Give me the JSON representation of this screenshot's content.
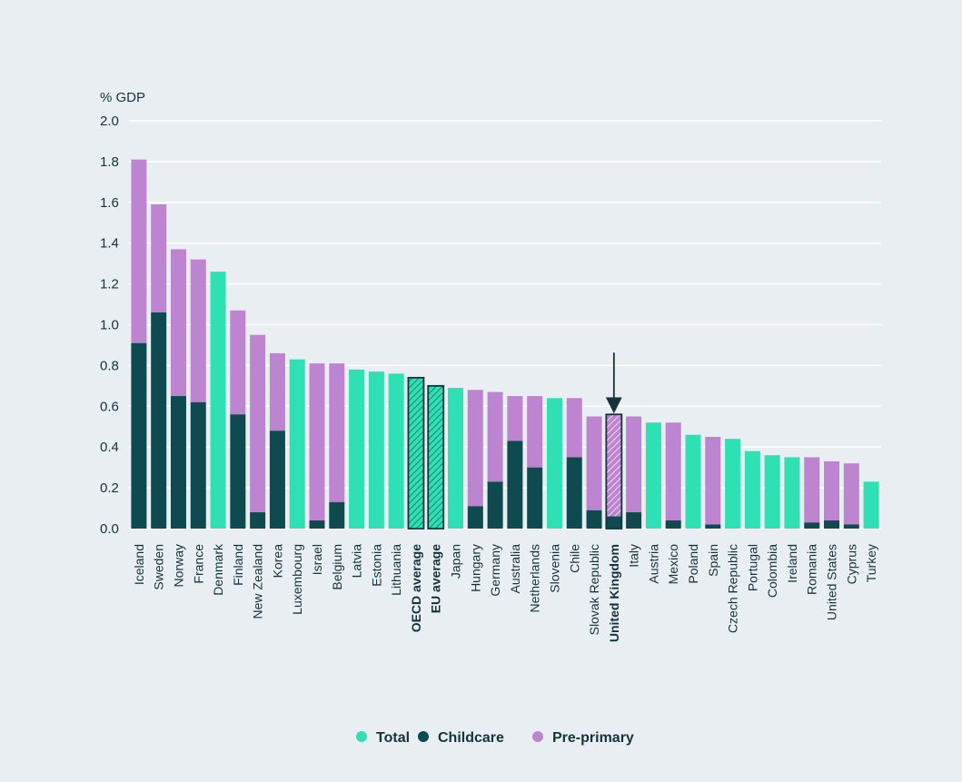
{
  "chart_data": {
    "type": "bar",
    "stacked": true,
    "unit_label": "% GDP",
    "ylim": [
      0,
      2.0
    ],
    "y_ticks": [
      "0.0",
      "0.2",
      "0.4",
      "0.6",
      "0.8",
      "1.0",
      "1.2",
      "1.4",
      "1.6",
      "1.8",
      "2.0"
    ],
    "grid": true,
    "legend_position": "bottom-center",
    "legend": [
      {
        "key": "total",
        "label": "Total",
        "color": "#2ee0b4"
      },
      {
        "key": "childcare",
        "label": "Childcare",
        "color": "#0e4a4f"
      },
      {
        "key": "preprimary",
        "label": "Pre-primary",
        "color": "#bd84cf"
      }
    ],
    "bars": [
      {
        "label": "Iceland",
        "childcare": 0.91,
        "total": 1.81
      },
      {
        "label": "Sweden",
        "childcare": 1.06,
        "total": 1.59
      },
      {
        "label": "Norway",
        "childcare": 0.65,
        "total": 1.37
      },
      {
        "label": "France",
        "childcare": 0.62,
        "total": 1.32
      },
      {
        "label": "Denmark",
        "total_only": true,
        "total": 1.26
      },
      {
        "label": "Finland",
        "childcare": 0.56,
        "total": 1.07
      },
      {
        "label": "New Zealand",
        "childcare": 0.08,
        "total": 0.95
      },
      {
        "label": "Korea",
        "childcare": 0.48,
        "total": 0.86
      },
      {
        "label": "Luxembourg",
        "total_only": true,
        "total": 0.83
      },
      {
        "label": "Israel",
        "childcare": 0.04,
        "total": 0.81
      },
      {
        "label": "Belgium",
        "childcare": 0.13,
        "total": 0.81
      },
      {
        "label": "Latvia",
        "total_only": true,
        "total": 0.78
      },
      {
        "label": "Estonia",
        "total_only": true,
        "total": 0.77
      },
      {
        "label": "Lithuania",
        "total_only": true,
        "total": 0.76
      },
      {
        "label": "OECD average",
        "total_only": true,
        "highlight": true,
        "total": 0.74
      },
      {
        "label": "EU average",
        "total_only": true,
        "highlight": true,
        "total": 0.7
      },
      {
        "label": "Japan",
        "total_only": true,
        "total": 0.69
      },
      {
        "label": "Hungary",
        "childcare": 0.11,
        "total": 0.68
      },
      {
        "label": "Germany",
        "childcare": 0.23,
        "total": 0.67
      },
      {
        "label": "Australia",
        "childcare": 0.43,
        "total": 0.65
      },
      {
        "label": "Netherlands",
        "childcare": 0.3,
        "total": 0.65
      },
      {
        "label": "Slovenia",
        "total_only": true,
        "total": 0.64
      },
      {
        "label": "Chile",
        "childcare": 0.35,
        "total": 0.64
      },
      {
        "label": "Slovak Republic",
        "childcare": 0.09,
        "total": 0.55
      },
      {
        "label": "United Kingdom",
        "highlight": true,
        "arrow": true,
        "childcare": 0.06,
        "total": 0.56
      },
      {
        "label": "Italy",
        "childcare": 0.08,
        "total": 0.55
      },
      {
        "label": "Austria",
        "total_only": true,
        "total": 0.52
      },
      {
        "label": "Mexico",
        "childcare": 0.04,
        "total": 0.52
      },
      {
        "label": "Poland",
        "total_only": true,
        "total": 0.46
      },
      {
        "label": "Spain",
        "childcare": 0.02,
        "total": 0.45
      },
      {
        "label": "Czech Republic",
        "total_only": true,
        "total": 0.44
      },
      {
        "label": "Portugal",
        "total_only": true,
        "total": 0.38
      },
      {
        "label": "Colombia",
        "total_only": true,
        "total": 0.36
      },
      {
        "label": "Ireland",
        "total_only": true,
        "total": 0.35
      },
      {
        "label": "Romania",
        "childcare": 0.03,
        "total": 0.35
      },
      {
        "label": "United States",
        "childcare": 0.04,
        "total": 0.33
      },
      {
        "label": "Cyprus",
        "childcare": 0.02,
        "total": 0.32
      },
      {
        "label": "Turkey",
        "total_only": true,
        "total": 0.23
      }
    ]
  }
}
